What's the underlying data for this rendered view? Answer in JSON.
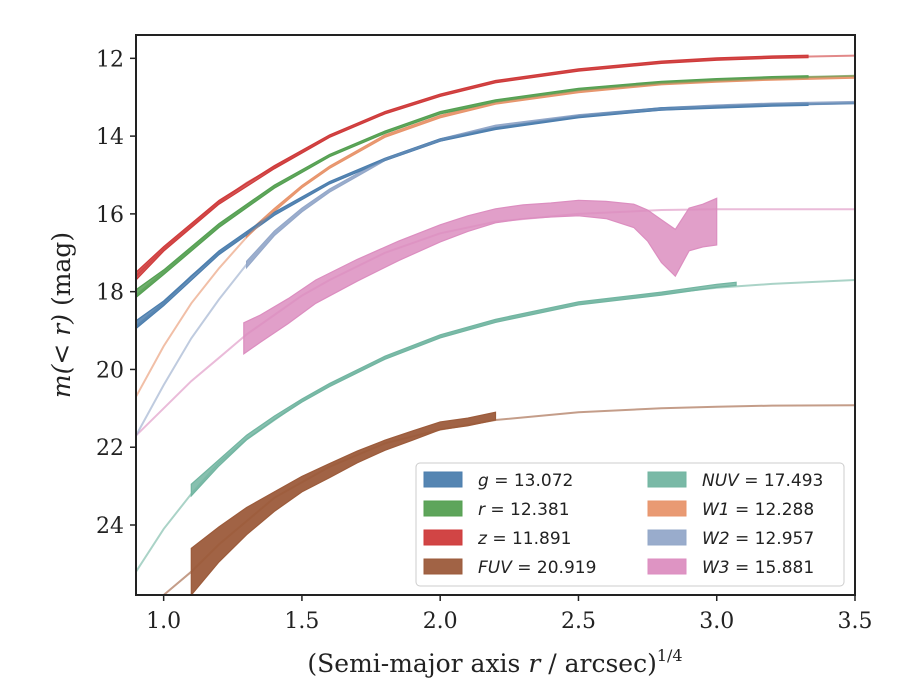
{
  "chart_data": {
    "type": "line",
    "xlabel_main": "(Semi-major axis ",
    "xlabel_var": "r",
    "xlabel_unit": " / arcsec)",
    "xlabel_exp": "1/4",
    "ylabel_main": "m",
    "ylabel_arg": "(< r)",
    "ylabel_unit": " (mag)",
    "xlim": [
      0.9,
      3.5
    ],
    "ylim": [
      25.8,
      11.4
    ],
    "y_inverted": true,
    "xticks": [
      1.0,
      1.5,
      2.0,
      2.5,
      3.0,
      3.5
    ],
    "xtick_labels": [
      "1.0",
      "1.5",
      "2.0",
      "2.5",
      "3.0",
      "3.5"
    ],
    "yticks": [
      12,
      14,
      16,
      18,
      20,
      22,
      24
    ],
    "ytick_labels": [
      "12",
      "14",
      "16",
      "18",
      "20",
      "22",
      "24"
    ],
    "grid": false,
    "legend_placement": "lower-right",
    "series": [
      {
        "name": "g = 13.072",
        "label_var": "g",
        "label_val": "= 13.072",
        "color": "#4c7eae",
        "model_x": [
          0.9,
          1.0,
          1.1,
          1.2,
          1.3,
          1.4,
          1.5,
          1.6,
          1.8,
          2.0,
          2.2,
          2.5,
          2.8,
          3.0,
          3.2,
          3.5
        ],
        "model_y": [
          18.9,
          18.3,
          17.6,
          17.0,
          16.5,
          16.0,
          15.6,
          15.2,
          14.6,
          14.1,
          13.8,
          13.5,
          13.3,
          13.25,
          13.2,
          13.15
        ],
        "data_x": [
          0.9,
          1.0,
          1.2,
          1.4,
          1.6,
          1.8,
          2.0,
          2.2,
          2.5,
          2.8,
          3.0,
          3.2,
          3.33
        ],
        "data_y": [
          18.85,
          18.3,
          17.0,
          16.0,
          15.2,
          14.6,
          14.1,
          13.8,
          13.5,
          13.3,
          13.25,
          13.2,
          13.18
        ],
        "band": [
          0.1,
          0.06,
          0.05,
          0.04,
          0.03,
          0.03,
          0.03,
          0.03,
          0.03,
          0.03,
          0.03,
          0.03,
          0.03
        ],
        "band_alpha": 0.85
      },
      {
        "name": "r = 12.381",
        "label_var": "r",
        "label_val": "= 12.381",
        "color": "#55a052",
        "model_x": [
          0.9,
          1.0,
          1.1,
          1.2,
          1.3,
          1.4,
          1.5,
          1.6,
          1.8,
          2.0,
          2.2,
          2.5,
          2.8,
          3.0,
          3.2,
          3.5
        ],
        "model_y": [
          18.1,
          17.5,
          16.9,
          16.3,
          15.8,
          15.3,
          14.9,
          14.5,
          13.9,
          13.4,
          13.1,
          12.8,
          12.62,
          12.55,
          12.5,
          12.45
        ],
        "data_x": [
          0.9,
          1.0,
          1.2,
          1.4,
          1.6,
          1.8,
          2.0,
          2.2,
          2.5,
          2.8,
          3.0,
          3.2,
          3.33
        ],
        "data_y": [
          18.05,
          17.5,
          16.3,
          15.3,
          14.5,
          13.9,
          13.4,
          13.1,
          12.8,
          12.62,
          12.55,
          12.5,
          12.48
        ],
        "band": [
          0.1,
          0.06,
          0.05,
          0.04,
          0.03,
          0.03,
          0.03,
          0.03,
          0.03,
          0.03,
          0.03,
          0.03,
          0.03
        ],
        "band_alpha": 0.85
      },
      {
        "name": "z = 11.891",
        "label_var": "z",
        "label_val": "= 11.891",
        "color": "#cf3b3b",
        "model_x": [
          0.9,
          1.0,
          1.1,
          1.2,
          1.3,
          1.4,
          1.5,
          1.6,
          1.8,
          2.0,
          2.2,
          2.5,
          2.8,
          3.0,
          3.2,
          3.5
        ],
        "model_y": [
          17.6,
          16.9,
          16.3,
          15.7,
          15.2,
          14.8,
          14.4,
          14.0,
          13.4,
          12.95,
          12.6,
          12.3,
          12.1,
          12.02,
          11.97,
          11.93
        ],
        "data_x": [
          0.9,
          1.0,
          1.2,
          1.4,
          1.6,
          1.8,
          2.0,
          2.2,
          2.5,
          2.8,
          3.0,
          3.2,
          3.33
        ],
        "data_y": [
          17.6,
          16.9,
          15.7,
          14.8,
          14.0,
          13.4,
          12.95,
          12.6,
          12.3,
          12.1,
          12.02,
          11.97,
          11.95
        ],
        "band": [
          0.1,
          0.06,
          0.05,
          0.04,
          0.03,
          0.03,
          0.03,
          0.03,
          0.03,
          0.03,
          0.03,
          0.03,
          0.03
        ],
        "band_alpha": 0.85
      },
      {
        "name": "FUV = 20.919",
        "label_var": "FUV",
        "label_val": "= 20.919",
        "color": "#9c5b3b",
        "model_x": [
          1.0,
          1.1,
          1.2,
          1.3,
          1.4,
          1.5,
          1.6,
          1.8,
          2.0,
          2.2,
          2.5,
          2.8,
          3.0,
          3.2,
          3.5
        ],
        "model_y": [
          25.8,
          25.2,
          24.5,
          23.9,
          23.3,
          22.9,
          22.5,
          21.9,
          21.55,
          21.3,
          21.1,
          21.0,
          20.96,
          20.93,
          20.92
        ],
        "data_x": [
          1.1,
          1.2,
          1.3,
          1.4,
          1.5,
          1.6,
          1.7,
          1.8,
          1.9,
          2.0,
          2.1,
          2.2
        ],
        "data_y": [
          25.2,
          24.5,
          23.9,
          23.4,
          22.95,
          22.6,
          22.25,
          21.95,
          21.7,
          21.45,
          21.35,
          21.2
        ],
        "band": [
          0.6,
          0.45,
          0.35,
          0.25,
          0.2,
          0.18,
          0.15,
          0.13,
          0.12,
          0.1,
          0.1,
          0.1
        ],
        "band_alpha": 0.95
      },
      {
        "name": "NUV = 17.493",
        "label_var": "NUV",
        "label_val": "= 17.493",
        "color": "#72b5a1",
        "model_x": [
          0.9,
          1.0,
          1.1,
          1.2,
          1.3,
          1.4,
          1.5,
          1.6,
          1.8,
          2.0,
          2.2,
          2.5,
          2.8,
          3.0,
          3.2,
          3.5
        ],
        "model_y": [
          25.2,
          24.1,
          23.2,
          22.4,
          21.8,
          21.3,
          20.8,
          20.4,
          19.7,
          19.15,
          18.75,
          18.3,
          18.05,
          17.9,
          17.8,
          17.7
        ],
        "data_x": [
          1.1,
          1.2,
          1.3,
          1.4,
          1.5,
          1.6,
          1.8,
          2.0,
          2.2,
          2.5,
          2.8,
          3.0,
          3.07
        ],
        "data_y": [
          23.1,
          22.4,
          21.75,
          21.25,
          20.8,
          20.4,
          19.7,
          19.15,
          18.75,
          18.3,
          18.05,
          17.85,
          17.8
        ],
        "band": [
          0.15,
          0.08,
          0.06,
          0.05,
          0.04,
          0.04,
          0.04,
          0.04,
          0.04,
          0.04,
          0.04,
          0.04,
          0.04
        ],
        "band_alpha": 0.85
      },
      {
        "name": "W1 = 12.288",
        "label_var": "W1",
        "label_val": "= 12.288",
        "color": "#e8956c",
        "model_x": [
          0.9,
          1.0,
          1.1,
          1.2,
          1.3,
          1.4,
          1.5,
          1.6,
          1.8,
          2.0,
          2.2,
          2.5,
          2.8,
          3.0,
          3.2,
          3.5
        ],
        "model_y": [
          20.7,
          19.4,
          18.3,
          17.4,
          16.6,
          15.9,
          15.3,
          14.8,
          14.0,
          13.5,
          13.15,
          12.85,
          12.65,
          12.58,
          12.53,
          12.48
        ],
        "data_x": [
          1.3,
          1.4,
          1.5,
          1.6,
          1.8,
          2.0,
          2.2,
          2.5,
          2.8,
          3.0,
          3.2,
          3.5
        ],
        "data_y": [
          16.55,
          15.9,
          15.3,
          14.8,
          14.0,
          13.5,
          13.15,
          12.85,
          12.65,
          12.58,
          12.53,
          12.48
        ],
        "band": [
          0.05,
          0.04,
          0.03,
          0.03,
          0.03,
          0.03,
          0.03,
          0.03,
          0.03,
          0.03,
          0.03,
          0.03
        ],
        "band_alpha": 0.85
      },
      {
        "name": "W2 = 12.957",
        "label_var": "W2",
        "label_val": "= 12.957",
        "color": "#94a8c9",
        "model_x": [
          0.9,
          1.0,
          1.1,
          1.2,
          1.3,
          1.4,
          1.5,
          1.6,
          1.8,
          2.0,
          2.2,
          2.5,
          2.8,
          3.0,
          3.2,
          3.5
        ],
        "model_y": [
          21.7,
          20.4,
          19.2,
          18.2,
          17.3,
          16.5,
          15.9,
          15.4,
          14.6,
          14.1,
          13.75,
          13.48,
          13.3,
          13.23,
          13.18,
          13.14
        ],
        "data_x": [
          1.3,
          1.4,
          1.5,
          1.6,
          1.8,
          2.0,
          2.2,
          2.5,
          2.8,
          3.0,
          3.2,
          3.5
        ],
        "data_y": [
          17.3,
          16.5,
          15.9,
          15.4,
          14.6,
          14.1,
          13.75,
          13.48,
          13.3,
          13.23,
          13.18,
          13.14
        ],
        "band": [
          0.08,
          0.06,
          0.05,
          0.04,
          0.03,
          0.03,
          0.03,
          0.03,
          0.03,
          0.03,
          0.03,
          0.03
        ],
        "band_alpha": 0.85
      },
      {
        "name": "W3 = 15.881",
        "label_var": "W3",
        "label_val": "= 15.881",
        "color": "#dc8ec0",
        "model_x": [
          0.9,
          1.0,
          1.1,
          1.2,
          1.3,
          1.4,
          1.5,
          1.6,
          1.8,
          2.0,
          2.2,
          2.5,
          2.8,
          3.0,
          3.2,
          3.5
        ],
        "model_y": [
          21.7,
          21.0,
          20.3,
          19.7,
          19.1,
          18.6,
          18.1,
          17.7,
          17.0,
          16.5,
          16.2,
          16.0,
          15.9,
          15.88,
          15.88,
          15.88
        ],
        "data_x": [
          1.29,
          1.35,
          1.45,
          1.55,
          1.7,
          1.85,
          2.0,
          2.1,
          2.2,
          2.3,
          2.4,
          2.5,
          2.6,
          2.7,
          2.75,
          2.8,
          2.85,
          2.9,
          2.95,
          3.0
        ],
        "data_y": [
          19.2,
          18.95,
          18.5,
          18.0,
          17.45,
          16.95,
          16.5,
          16.25,
          16.05,
          15.95,
          15.9,
          15.85,
          15.9,
          16.05,
          16.3,
          16.7,
          17.0,
          16.4,
          16.3,
          16.2
        ],
        "band": [
          0.4,
          0.35,
          0.32,
          0.3,
          0.28,
          0.25,
          0.22,
          0.2,
          0.18,
          0.18,
          0.18,
          0.2,
          0.22,
          0.3,
          0.4,
          0.55,
          0.6,
          0.55,
          0.55,
          0.6
        ],
        "band_alpha": 0.85
      }
    ]
  }
}
